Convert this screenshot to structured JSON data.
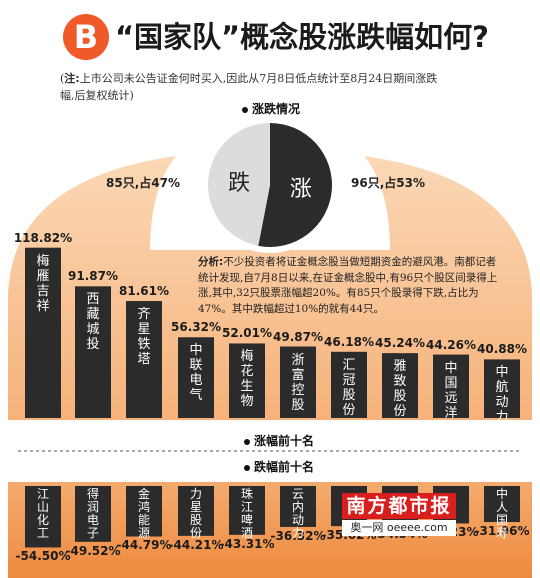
{
  "header": {
    "badge": "B",
    "title": "“国家队”概念股涨跌幅如何?",
    "note_label": "注:",
    "note": "上市公司未公告证金何时买入,因此从7月8日低点统计至8月24日期间涨跌幅,后复权统计)",
    "note_paren": "("
  },
  "sections": {
    "pie_title": "涨跌情况",
    "up_title": "涨幅前十名",
    "down_title": "跌幅前十名"
  },
  "analysis": {
    "label": "分析:",
    "text": "不少投资者将证金概念股当做短期资金的避风港。南都记者统计发现,自7月8日以来,在证金概念股中,有96只个股区间录得上涨,其中,32只股票涨幅超20%。有85只个股录得下跌,占比为47%。其中跌幅超过10%的就有44只。"
  },
  "colors": {
    "orange_light": "#f7b27a",
    "orange_dark": "#f08a3c",
    "bar_dark": "#2b2b2b",
    "pie_up": "#2b2b2b",
    "pie_down": "#dcdcdc",
    "badge": "#ef5a28"
  },
  "watermark": {
    "brand": "南方都市报",
    "site": "奥一网 oeeee.com"
  },
  "chart_data": [
    {
      "type": "pie",
      "slices": [
        {
          "label": "跌",
          "count": 85,
          "caption": "85只,占47%",
          "percent": 47
        },
        {
          "label": "涨",
          "count": 96,
          "caption": "96只,占53%",
          "percent": 53
        }
      ]
    },
    {
      "type": "bar",
      "title": "涨幅前十名",
      "categories": [
        "梅雁吉祥",
        "西藏城投",
        "齐星铁塔",
        "中联电气",
        "梅花生物",
        "浙富控股",
        "汇冠股份",
        "雅致股份",
        "中国远洋",
        "中航动力"
      ],
      "values": [
        118.82,
        91.87,
        81.61,
        56.32,
        52.01,
        49.87,
        46.18,
        45.24,
        44.26,
        40.88
      ],
      "labels": [
        "118.82%",
        "91.87%",
        "81.61%",
        "56.32%",
        "52.01%",
        "49.87%",
        "46.18%",
        "45.24%",
        "44.26%",
        "40.88%"
      ]
    },
    {
      "type": "bar",
      "title": "跌幅前十名",
      "categories": [
        "江山化工",
        "得润电子",
        "金鸿能源",
        "力星股份",
        "珠江啤酒",
        "云内动力",
        "",
        "",
        "",
        "中人国寿"
      ],
      "values": [
        -54.5,
        -49.52,
        -44.79,
        -44.21,
        -43.31,
        -36.32,
        -35.62,
        -34.54,
        -33.23,
        -31.96
      ],
      "labels": [
        "-54.50%",
        "-49.52%",
        "-44.79%",
        "-44.21%",
        "-43.31%",
        "-36.32%",
        "-35.62%",
        "-34.54%",
        "-33.23%",
        "-31.96%"
      ]
    }
  ]
}
